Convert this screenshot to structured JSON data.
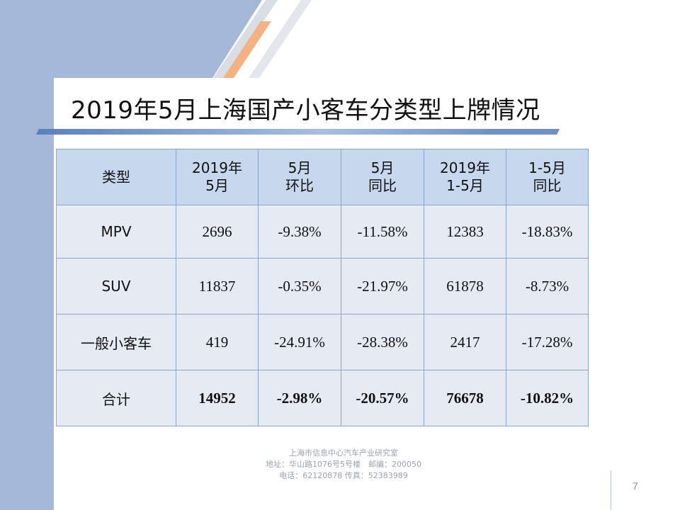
{
  "slide": {
    "title": "2019年5月上海国产小客车分类型上牌情况",
    "page_number": "7"
  },
  "table": {
    "headers": [
      [
        "类型"
      ],
      [
        "2019年",
        "5月"
      ],
      [
        "5月",
        "环比"
      ],
      [
        "5月",
        "同比"
      ],
      [
        "2019年",
        "1-5月"
      ],
      [
        "1-5月",
        "同比"
      ]
    ],
    "rows": [
      [
        "MPV",
        "2696",
        "-9.38%",
        "-11.58%",
        "12383",
        "-18.83%"
      ],
      [
        "SUV",
        "11837",
        "-0.35%",
        "-21.97%",
        "61878",
        "-8.73%"
      ],
      [
        "一般小客车",
        "419",
        "-24.91%",
        "-28.38%",
        "2417",
        "-17.28%"
      ],
      [
        "合计",
        "14952",
        "-2.98%",
        "-20.57%",
        "76678",
        "-10.82%"
      ]
    ]
  },
  "footer": {
    "line1": "上海市信息中心汽车产业研究室",
    "line2": "地址：华山路1076号5号楼　邮编：200050",
    "line3": "电话：62120878 传真：52383989"
  },
  "colors": {
    "left_band": "#a5b8d8",
    "header_cell": "#c6d7ee",
    "body_cell": "#e6ebf3",
    "accent_orange": "#f4b183",
    "title_underline_blue": "#6f8fc6"
  }
}
